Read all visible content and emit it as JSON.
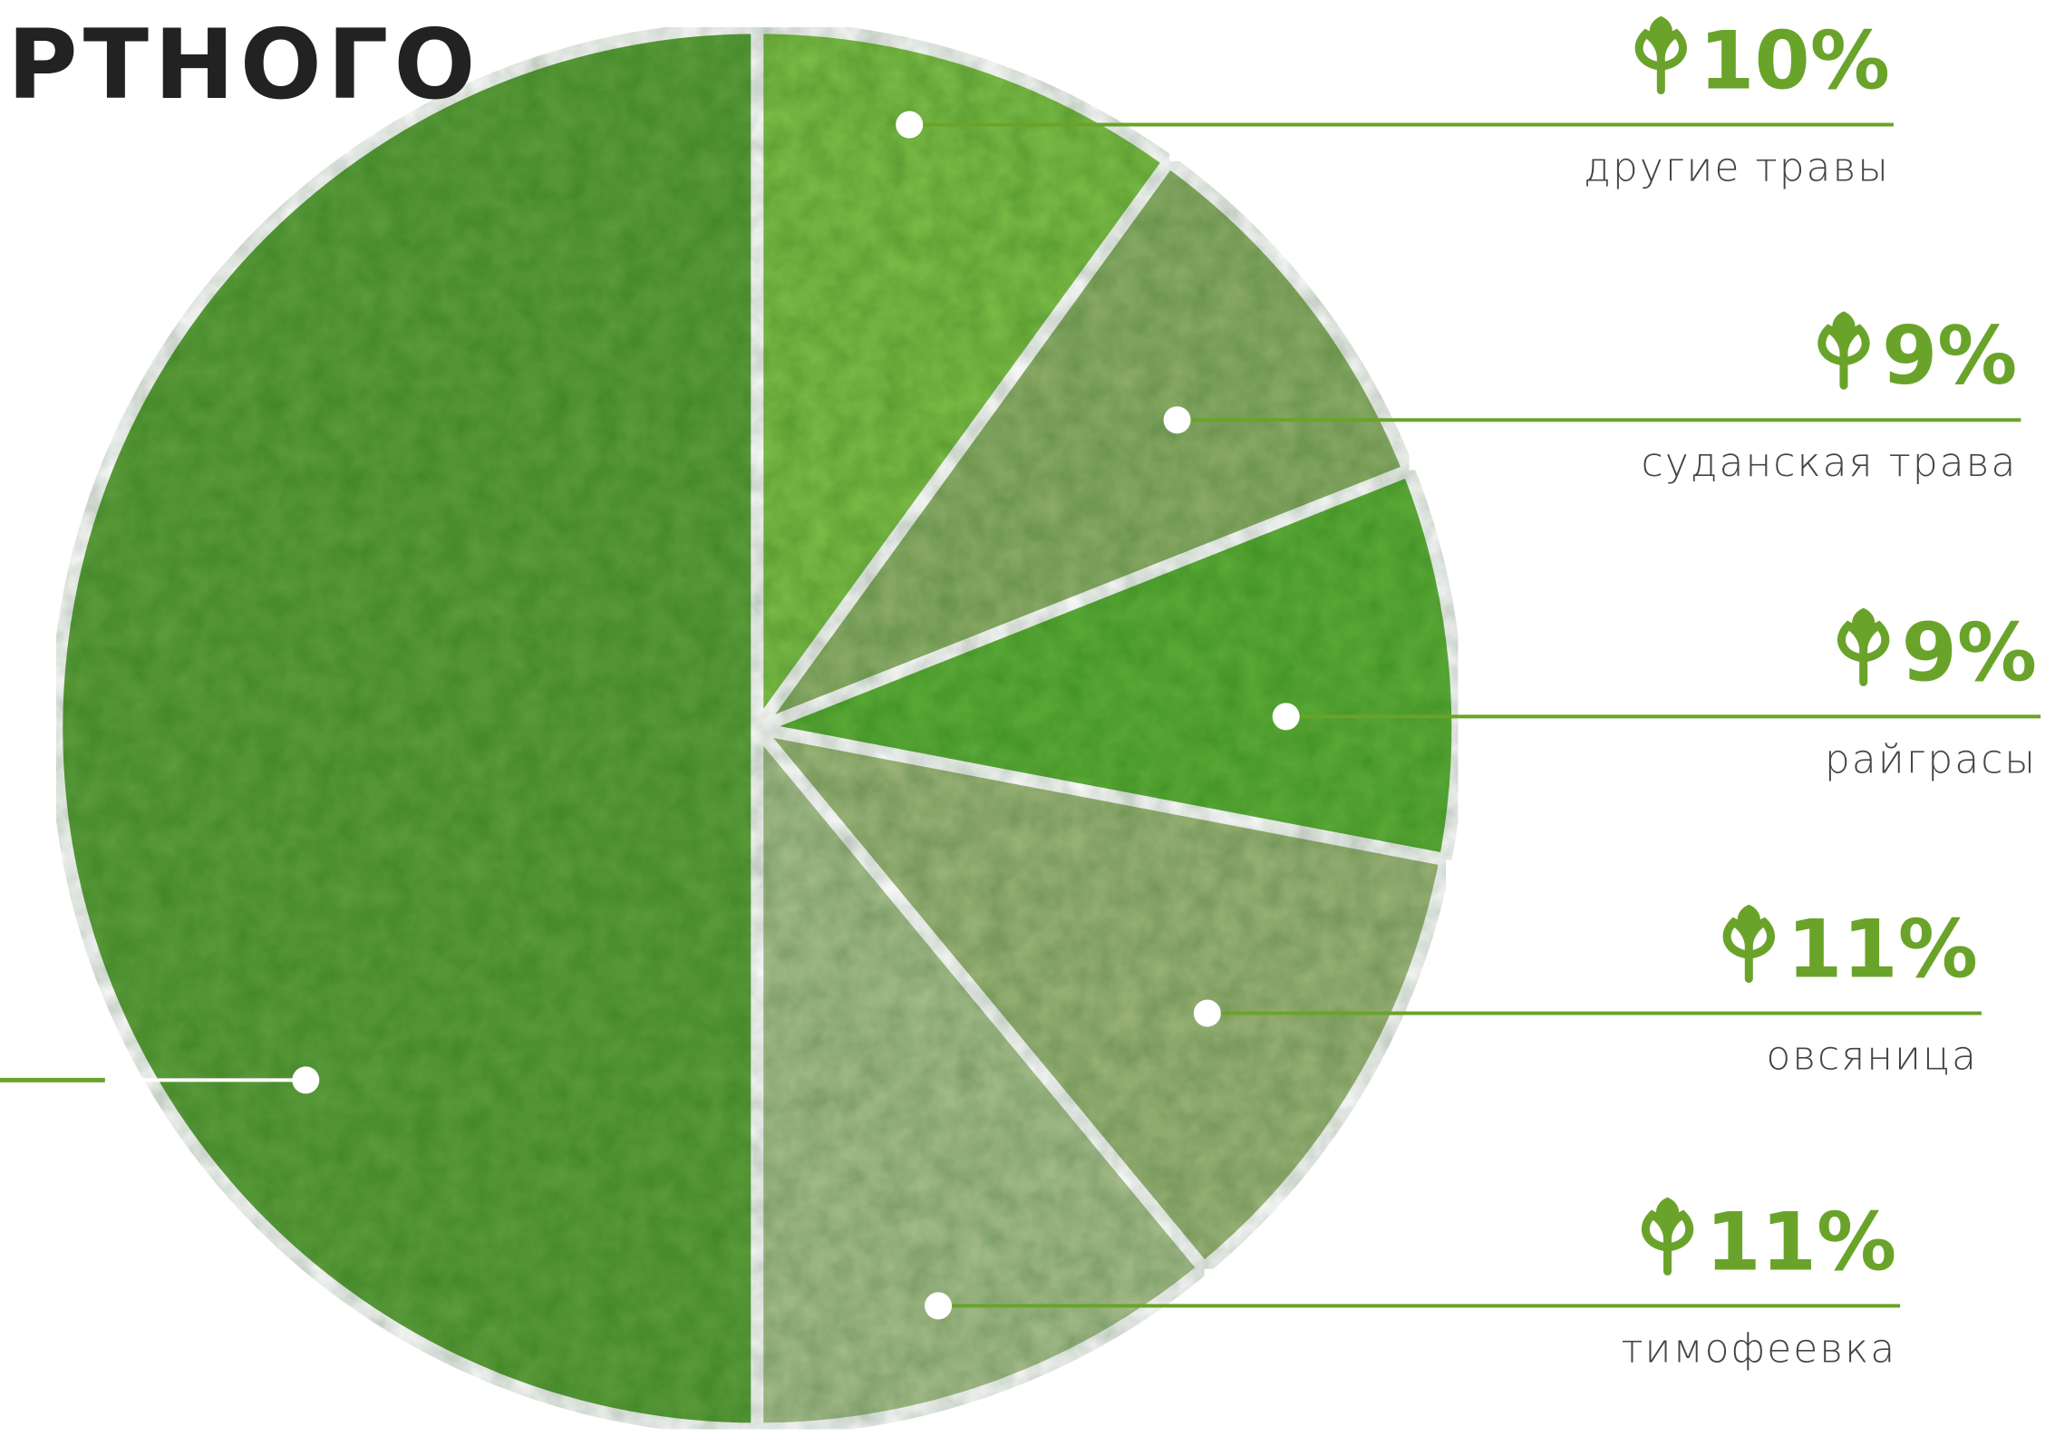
{
  "chart_data": {
    "type": "pie",
    "title": "РТНОГО",
    "categories": [
      "другие травы",
      "суданская трава",
      "райграсы",
      "овсяница",
      "тимофеевка",
      null
    ],
    "values": [
      10,
      9,
      9,
      11,
      11,
      50
    ],
    "value_labels": [
      "10%",
      "9%",
      "9%",
      "11%",
      "11%",
      null
    ],
    "colors": [
      "#7fbf4a",
      "#8fae6a",
      "#5fae3a",
      "#9fb57a",
      "#a9bf8e",
      "#5e9e3c"
    ],
    "label_color": "#6aa32a"
  }
}
